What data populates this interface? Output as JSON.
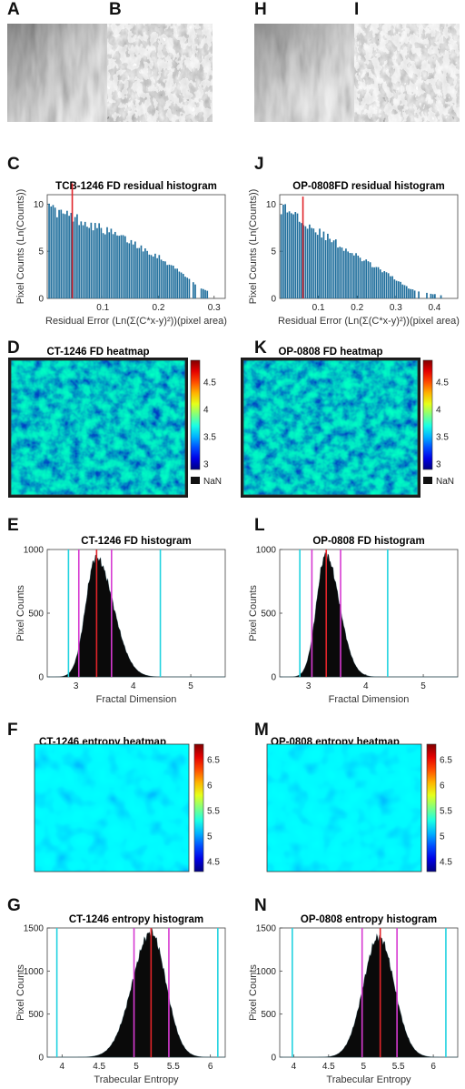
{
  "panel_letters": {
    "A": "A",
    "B": "B",
    "H": "H",
    "I": "I",
    "C": "C",
    "J": "J",
    "D": "D",
    "K": "K",
    "E": "E",
    "L": "L",
    "F": "F",
    "M": "M",
    "G": "G",
    "N": "N"
  },
  "colors": {
    "residual_bars": "#1f6e9c",
    "median_line": "#e0242a",
    "pink_line": "#d63ad1",
    "cyan_line": "#22d3e0",
    "hist_fill": "#0a0a0a",
    "heatmap_frame": "#1a1a1a"
  },
  "chart_data": [
    {
      "id": "C",
      "type": "bar",
      "title": "TCB-1246 FD residual histogram",
      "xlabel": "Residual Error (Ln(Σ(C*x-y)²))(pixel area)",
      "ylabel": "Pixel Counts (Ln(Counts))",
      "xlim": [
        0,
        0.32
      ],
      "ylim": [
        0,
        11
      ],
      "xticks": [
        0.1,
        0.2,
        0.3
      ],
      "yticks": [
        0,
        5,
        10
      ],
      "bin_range": [
        0.002,
        0.29
      ],
      "profile": [
        [
          0.002,
          10.8
        ],
        [
          0.01,
          9.3
        ],
        [
          0.05,
          8.5
        ],
        [
          0.1,
          7.3
        ],
        [
          0.15,
          6.0
        ],
        [
          0.2,
          4.4
        ],
        [
          0.25,
          2.3
        ],
        [
          0.27,
          1.1
        ],
        [
          0.29,
          0.8
        ]
      ],
      "vlines": [
        {
          "x": 0.045,
          "color": "red",
          "height": 12.2
        }
      ]
    },
    {
      "id": "J",
      "type": "bar",
      "title": "OP-0808FD residual histogram",
      "xlabel": "Residual Error (Ln(Σ(C*x-y)²))(pixel area)",
      "ylabel": "Pixel Counts (Ln(Counts))",
      "xlim": [
        0,
        0.46
      ],
      "ylim": [
        0,
        11
      ],
      "xticks": [
        0.1,
        0.2,
        0.3,
        0.4
      ],
      "yticks": [
        0,
        5,
        10
      ],
      "bin_range": [
        0.002,
        0.42
      ],
      "profile": [
        [
          0.002,
          9.6
        ],
        [
          0.03,
          9.2
        ],
        [
          0.1,
          7.0
        ],
        [
          0.2,
          4.4
        ],
        [
          0.3,
          2.0
        ],
        [
          0.33,
          1.1
        ],
        [
          0.36,
          0.7
        ],
        [
          0.42,
          0.3
        ]
      ],
      "vlines": [
        {
          "x": 0.06,
          "color": "red",
          "height": 10.8
        }
      ]
    },
    {
      "id": "D",
      "type": "heatmap",
      "title": "CT-1246 FD heatmap",
      "colorbar_ticks": [
        "3",
        "3.5",
        "4",
        "4.5"
      ],
      "clim": [
        2.9,
        4.9
      ],
      "nan_label": "NaN"
    },
    {
      "id": "K",
      "type": "heatmap",
      "title": "OP-0808 FD heatmap",
      "colorbar_ticks": [
        "3",
        "3.5",
        "4",
        "4.5"
      ],
      "clim": [
        2.9,
        4.9
      ],
      "nan_label": "NaN"
    },
    {
      "id": "E",
      "type": "area",
      "title": "CT-1246 FD histogram",
      "xlabel": "Fractal Dimension",
      "ylabel": "Pixel Counts",
      "xlim": [
        2.5,
        5.6
      ],
      "ylim": [
        0,
        1000
      ],
      "xticks": [
        3,
        4,
        5
      ],
      "yticks": [
        0,
        500,
        1000
      ],
      "curve": {
        "peak_x": 3.35,
        "peak_y": 940,
        "sigma_left": 0.18,
        "sigma_right": 0.3
      },
      "vlines": [
        {
          "x": 2.87,
          "color": "cyan"
        },
        {
          "x": 3.05,
          "color": "pink"
        },
        {
          "x": 3.36,
          "color": "red"
        },
        {
          "x": 3.62,
          "color": "pink"
        },
        {
          "x": 4.47,
          "color": "cyan"
        }
      ]
    },
    {
      "id": "L",
      "type": "area",
      "title": "OP-0808 FD histogram",
      "xlabel": "Fractal Dimension",
      "ylabel": "Pixel Counts",
      "xlim": [
        2.5,
        5.6
      ],
      "ylim": [
        0,
        1000
      ],
      "xticks": [
        3,
        4,
        5
      ],
      "yticks": [
        0,
        500,
        1000
      ],
      "curve": {
        "peak_x": 3.3,
        "peak_y": 960,
        "sigma_left": 0.16,
        "sigma_right": 0.24
      },
      "vlines": [
        {
          "x": 2.85,
          "color": "cyan"
        },
        {
          "x": 3.06,
          "color": "pink"
        },
        {
          "x": 3.31,
          "color": "red"
        },
        {
          "x": 3.56,
          "color": "pink"
        },
        {
          "x": 4.38,
          "color": "cyan"
        }
      ]
    },
    {
      "id": "F",
      "type": "heatmap",
      "title": "CT-1246 entropy heatmap",
      "colorbar_ticks": [
        "4.5",
        "5",
        "5.5",
        "6",
        "6.5"
      ],
      "clim": [
        4.3,
        6.8
      ]
    },
    {
      "id": "M",
      "type": "heatmap",
      "title": "OP-0808 entropy heatmap",
      "colorbar_ticks": [
        "4.5",
        "5",
        "5.5",
        "6",
        "6.5"
      ],
      "clim": [
        4.3,
        6.8
      ]
    },
    {
      "id": "G",
      "type": "area",
      "title": "CT-1246 entropy histogram",
      "xlabel": "Trabecular Entropy",
      "ylabel": "Pixel Counts",
      "xlim": [
        3.8,
        6.2
      ],
      "ylim": [
        0,
        1500
      ],
      "xticks": [
        4,
        4.5,
        5,
        5.5,
        6
      ],
      "yticks": [
        0,
        500,
        1000,
        1500
      ],
      "curve": {
        "peak_x": 5.2,
        "peak_y": 1450,
        "sigma_left": 0.25,
        "sigma_right": 0.2
      },
      "vlines": [
        {
          "x": 3.93,
          "color": "cyan"
        },
        {
          "x": 4.97,
          "color": "pink"
        },
        {
          "x": 5.2,
          "color": "red"
        },
        {
          "x": 5.44,
          "color": "pink"
        },
        {
          "x": 6.1,
          "color": "cyan"
        }
      ]
    },
    {
      "id": "N",
      "type": "area",
      "title": "OP-0808 entropy histogram",
      "xlabel": "Trabecular Entropy",
      "ylabel": "Pixel Counts",
      "xlim": [
        3.8,
        6.35
      ],
      "ylim": [
        0,
        1500
      ],
      "xticks": [
        4,
        4.5,
        5,
        5.5,
        6
      ],
      "yticks": [
        0,
        500,
        1000,
        1500
      ],
      "curve": {
        "peak_x": 5.22,
        "peak_y": 1400,
        "sigma_left": 0.22,
        "sigma_right": 0.22
      },
      "vlines": [
        {
          "x": 3.98,
          "color": "cyan"
        },
        {
          "x": 4.98,
          "color": "pink"
        },
        {
          "x": 5.24,
          "color": "red"
        },
        {
          "x": 5.48,
          "color": "pink"
        },
        {
          "x": 6.18,
          "color": "cyan"
        }
      ]
    }
  ]
}
